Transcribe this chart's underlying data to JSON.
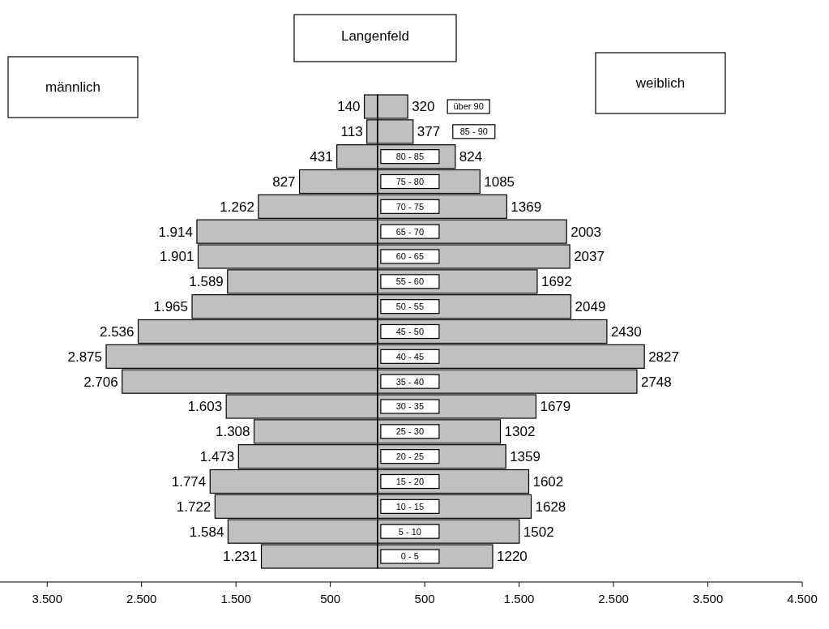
{
  "chart_data": {
    "type": "bar",
    "orientation": "horizontal",
    "stacked": false,
    "title": "Langenfeld",
    "annotations": [
      "männlich",
      "weiblich"
    ],
    "categories": [
      "über 90",
      "85 - 90",
      "80 - 85",
      "75 - 80",
      "70 - 75",
      "65 - 70",
      "60 - 65",
      "55 - 60",
      "50 - 55",
      "45 - 50",
      "40 - 45",
      "35 - 40",
      "30 - 35",
      "25 - 30",
      "20 - 25",
      "15 - 20",
      "10 - 15",
      "5 - 10",
      "0 - 5"
    ],
    "series": [
      {
        "color": "#c0c0c0",
        "base": [
          -140,
          -113,
          -431,
          -827,
          -1262,
          -1914,
          -1901,
          -1589,
          -1965,
          -2536,
          -2875,
          -2706,
          -1603,
          -1308,
          -1473,
          -1774,
          -1722,
          -1584,
          -1231
        ],
        "values": [
          140,
          113,
          431,
          827,
          1262,
          1914,
          1901,
          1589,
          1965,
          2536,
          2875,
          2706,
          1603,
          1308,
          1473,
          1774,
          1722,
          1584,
          1231
        ],
        "value_labels": [
          "140",
          "113",
          "431",
          "827",
          "1.262",
          "1.914",
          "1.901",
          "1.589",
          "1.965",
          "2.536",
          "2.875",
          "2.706",
          "1.603",
          "1.308",
          "1.473",
          "1.774",
          "1.722",
          "1.584",
          "1.231"
        ]
      },
      {
        "color": "#c0c0c0",
        "values": [
          320,
          377,
          824,
          1085,
          1369,
          2003,
          2037,
          1692,
          2049,
          2430,
          2827,
          2748,
          1679,
          1302,
          1359,
          1602,
          1628,
          1502,
          1220
        ],
        "value_labels": [
          "320",
          "377",
          "824",
          "1085",
          "1369",
          "2003",
          "2037",
          "1692",
          "2049",
          "2430",
          "2827",
          "2748",
          "1679",
          "1302",
          "1359",
          "1602",
          "1628",
          "1502",
          "1220"
        ]
      }
    ],
    "xlim": [
      -4000,
      4500
    ],
    "xticks": [
      {
        "value": -3500,
        "label": "3.500"
      },
      {
        "value": -2500,
        "label": "2.500"
      },
      {
        "value": -1500,
        "label": "1.500"
      },
      {
        "value": -500,
        "label": "500"
      },
      {
        "value": 500,
        "label": "500"
      },
      {
        "value": 1500,
        "label": "1.500"
      },
      {
        "value": 2500,
        "label": "2.500"
      },
      {
        "value": 3500,
        "label": "3.500"
      },
      {
        "value": 4500,
        "label": "4.500"
      }
    ],
    "grid": false
  }
}
